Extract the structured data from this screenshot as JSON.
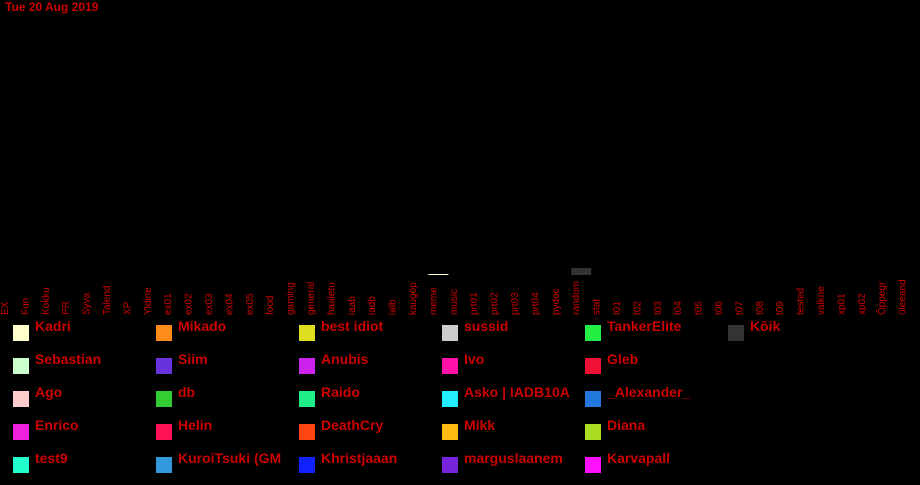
{
  "date_label": "Tue 20 Aug 2019",
  "chart_data": {
    "type": "bar",
    "categories": [
      "EX",
      "Fun",
      "Kokku",
      "PR",
      "Syva",
      "Talend",
      "XP",
      "Yldine",
      "ex01",
      "ex02",
      "ex03",
      "ex04",
      "ex05",
      "food",
      "gaming",
      "general",
      "haaletu",
      "iaab",
      "iadb",
      "ialb",
      "kaugöp",
      "meme",
      "music",
      "prt01",
      "prt02",
      "prt03",
      "prt04",
      "pydoc",
      "random",
      "stat",
      "t01",
      "t02",
      "t03",
      "t04",
      "t05",
      "t06",
      "t07",
      "t08",
      "t09",
      "tested",
      "valkne",
      "xp01",
      "xp02",
      "Ôppegr",
      "ûleeand"
    ],
    "series": [
      {
        "name": "Kõik",
        "color": "#333333",
        "values": [
          0,
          0,
          0,
          0,
          0,
          0,
          0,
          0,
          0,
          0,
          0,
          0,
          0,
          0,
          0,
          0,
          0,
          0,
          0,
          0,
          0,
          0,
          0,
          0,
          0,
          0,
          0,
          0,
          7,
          0,
          0,
          0,
          0,
          0,
          0,
          0,
          0,
          0,
          0,
          0,
          0,
          0,
          0,
          0,
          0
        ]
      },
      {
        "name": "Kadri",
        "color": "#ffffcc",
        "values": [
          0,
          0,
          0,
          0,
          0,
          0,
          0,
          0,
          0,
          0,
          0,
          0,
          0,
          0,
          0,
          0,
          0,
          0,
          0,
          0,
          0,
          1,
          0,
          0,
          0,
          0,
          0,
          0,
          0,
          0,
          0,
          0,
          0,
          0,
          0,
          0,
          0,
          0,
          0,
          0,
          0,
          0,
          0,
          0,
          0
        ]
      }
    ],
    "title": "",
    "xlabel": "",
    "ylabel": ""
  },
  "legend": [
    {
      "name": "Kadri",
      "color": "#ffffcc"
    },
    {
      "name": "Sebastian",
      "color": "#ccffcc"
    },
    {
      "name": "Ago",
      "color": "#ffcccc"
    },
    {
      "name": "Enrico",
      "color": "#ee22dd"
    },
    {
      "name": "test9",
      "color": "#22ffcc"
    },
    {
      "name": "Mikado",
      "color": "#ff8c1a"
    },
    {
      "name": "Siim",
      "color": "#6633dd"
    },
    {
      "name": "db",
      "color": "#33cc33"
    },
    {
      "name": "Helin",
      "color": "#ff1155"
    },
    {
      "name": "KuroiTsuki (GM",
      "color": "#3399dd"
    },
    {
      "name": "best idiot",
      "color": "#dddd22"
    },
    {
      "name": "Anubis",
      "color": "#cc22ee"
    },
    {
      "name": "Raido",
      "color": "#22ee88"
    },
    {
      "name": "DeathCry",
      "color": "#ff4411"
    },
    {
      "name": "Khristjaaan",
      "color": "#1122ff"
    },
    {
      "name": "sussid",
      "color": "#cccccc"
    },
    {
      "name": "Ivo",
      "color": "#ff11aa"
    },
    {
      "name": "Asko | IADB10A",
      "color": "#22eeff"
    },
    {
      "name": "Mikk",
      "color": "#ffbb11"
    },
    {
      "name": "marguslaanem",
      "color": "#7722dd"
    },
    {
      "name": "TankerElite",
      "color": "#22ee44"
    },
    {
      "name": "Gleb",
      "color": "#ee1133"
    },
    {
      "name": "_Alexander_",
      "color": "#2277dd"
    },
    {
      "name": "Diana",
      "color": "#aadd22"
    },
    {
      "name": "Karvapall",
      "color": "#ff11ff"
    },
    {
      "name": "Kõik",
      "color": "#333333"
    }
  ]
}
